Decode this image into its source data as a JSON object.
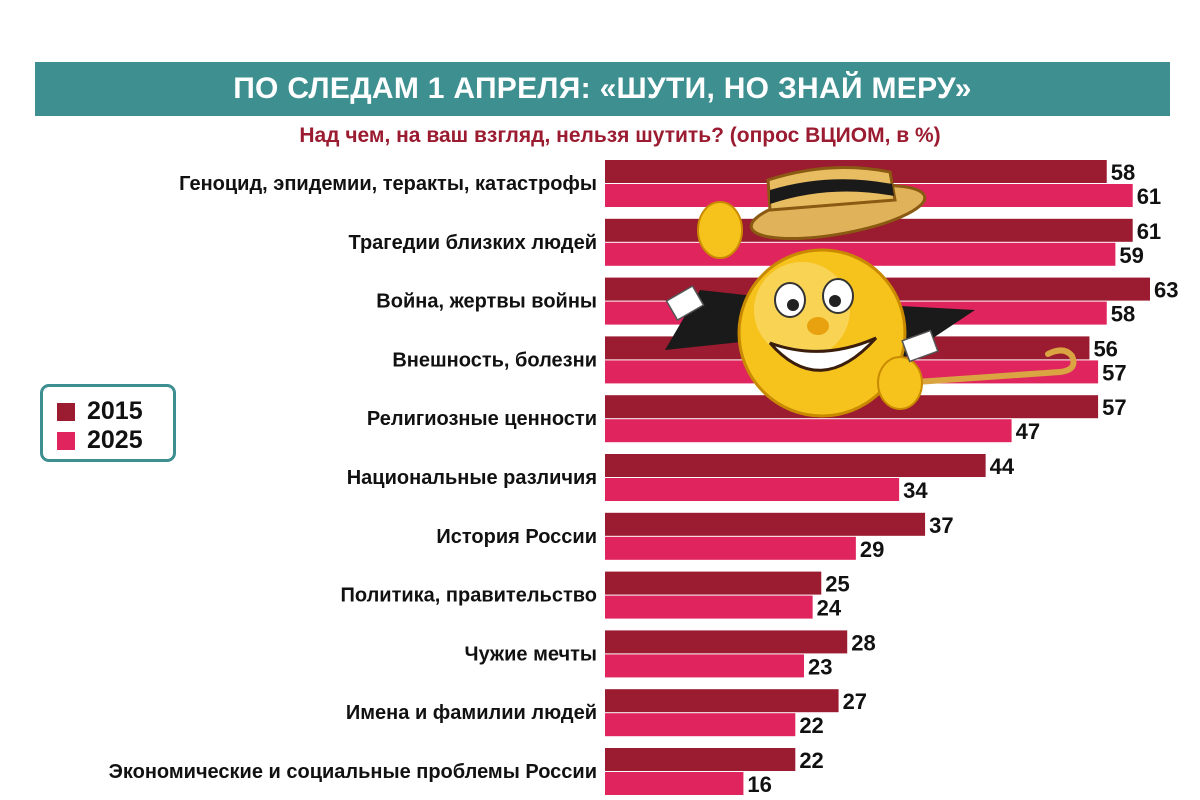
{
  "banner": {
    "title": "ПО СЛЕДАМ 1 АПРЕЛЯ: «ШУТИ, НО ЗНАЙ МЕРУ»"
  },
  "subtitle": "Над чем, на ваш взгляд, нельзя шутить? (опрос ВЦИОМ, в %)",
  "colors": {
    "series_2015": "#9b1b30",
    "series_2025": "#e0245e",
    "accent": "#3d8f90"
  },
  "legend": {
    "items": [
      {
        "label": "2015"
      },
      {
        "label": "2025"
      }
    ]
  },
  "illustration": {
    "icon": "smiley-with-boater-hat-and-cane-icon"
  },
  "chart_data": {
    "type": "bar",
    "orientation": "horizontal",
    "title": "Над чем, на ваш взгляд, нельзя шутить? (опрос ВЦИОМ, в %)",
    "categories": [
      "Геноцид, эпидемии, теракты, катастрофы",
      "Трагедии близких людей",
      "Война, жертвы войны",
      "Внешность, болезни",
      "Религиозные ценности",
      "Национальные различия",
      "История России",
      "Политика, правительство",
      "Чужие мечты",
      "Имена и фамилии людей",
      "Экономические и социальные проблемы России"
    ],
    "series": [
      {
        "name": "2015",
        "values": [
          58,
          61,
          63,
          56,
          57,
          44,
          37,
          25,
          28,
          27,
          22
        ]
      },
      {
        "name": "2025",
        "values": [
          61,
          59,
          58,
          57,
          47,
          34,
          29,
          24,
          23,
          22,
          16
        ]
      }
    ],
    "xlim": [
      0,
      63
    ],
    "legend_position": "left",
    "grid": false
  }
}
